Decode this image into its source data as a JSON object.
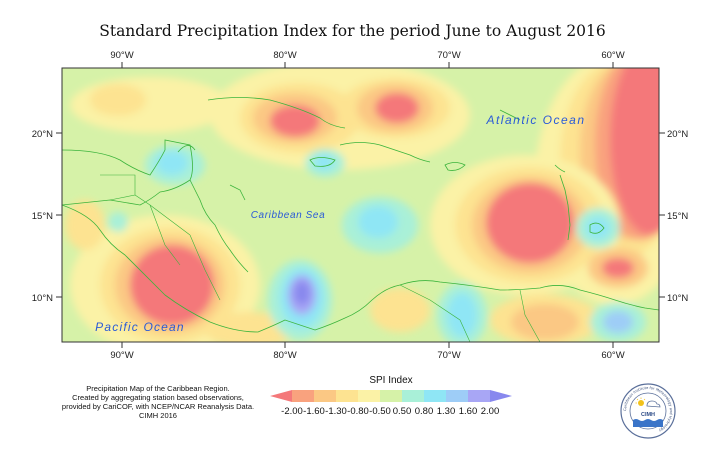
{
  "title": "Standard Precipitation Index for the period June to August 2016",
  "axes": {
    "longitude_ticks": [
      "90°W",
      "80°W",
      "70°W",
      "60°W"
    ],
    "latitude_ticks": [
      "20°N",
      "15°N",
      "10°N"
    ]
  },
  "places": {
    "atlantic": "Atlantic Ocean",
    "caribbean": "Caribbean Sea",
    "pacific": "Pacific Ocean"
  },
  "legend": {
    "title": "SPI Index",
    "ticks": [
      "-2.00",
      "-1.60",
      "-1.30",
      "-0.80",
      "-0.50",
      "0.50",
      "0.80",
      "1.30",
      "1.60",
      "2.00"
    ],
    "colors": [
      "#f4787a",
      "#f9a27e",
      "#fbc884",
      "#fde391",
      "#fbf2a6",
      "#d6f2a8",
      "#a9f0d8",
      "#8fe6f5",
      "#9ecdf7",
      "#a8a6f5",
      "#8888ee"
    ]
  },
  "caption": [
    "Precipitation Map of the Caribbean Region.",
    "Created by aggregating station based observations,",
    "provided by CariCOF, with NCEP/NCAR Reanalysis Data.",
    "CIMH 2016"
  ],
  "logo": {
    "text": "CIMH",
    "ring_text": "Caribbean Institute for Meteorology and Hydrology"
  }
}
